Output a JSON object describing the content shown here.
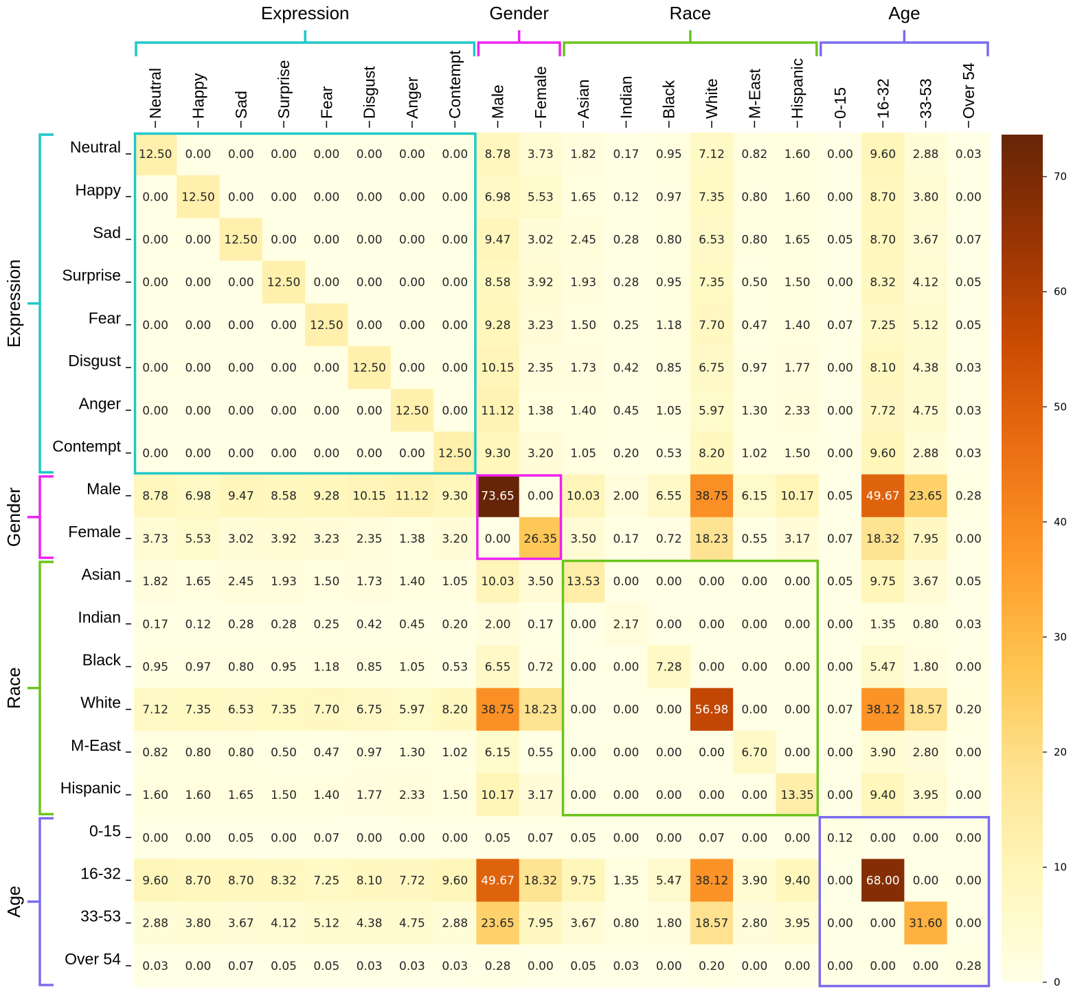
{
  "chart_data": {
    "type": "heatmap",
    "labels": [
      "Neutral",
      "Happy",
      "Sad",
      "Surprise",
      "Fear",
      "Disgust",
      "Anger",
      "Contempt",
      "Male",
      "Female",
      "Asian",
      "Indian",
      "Black",
      "White",
      "M-East",
      "Hispanic",
      "0-15",
      "16-32",
      "33-53",
      "Over 54"
    ],
    "groups": [
      {
        "name": "Expression",
        "start": 0,
        "end": 7,
        "color": "#1fc8c8"
      },
      {
        "name": "Gender",
        "start": 8,
        "end": 9,
        "color": "#ee22ee"
      },
      {
        "name": "Race",
        "start": 10,
        "end": 15,
        "color": "#6cc31d"
      },
      {
        "name": "Age",
        "start": 16,
        "end": 19,
        "color": "#7a6cf0"
      }
    ],
    "values": [
      [
        12.5,
        0.0,
        0.0,
        0.0,
        0.0,
        0.0,
        0.0,
        0.0,
        8.78,
        3.73,
        1.82,
        0.17,
        0.95,
        7.12,
        0.82,
        1.6,
        0.0,
        9.6,
        2.88,
        0.03
      ],
      [
        0.0,
        12.5,
        0.0,
        0.0,
        0.0,
        0.0,
        0.0,
        0.0,
        6.98,
        5.53,
        1.65,
        0.12,
        0.97,
        7.35,
        0.8,
        1.6,
        0.0,
        8.7,
        3.8,
        0.0
      ],
      [
        0.0,
        0.0,
        12.5,
        0.0,
        0.0,
        0.0,
        0.0,
        0.0,
        9.47,
        3.02,
        2.45,
        0.28,
        0.8,
        6.53,
        0.8,
        1.65,
        0.05,
        8.7,
        3.67,
        0.07
      ],
      [
        0.0,
        0.0,
        0.0,
        12.5,
        0.0,
        0.0,
        0.0,
        0.0,
        8.58,
        3.92,
        1.93,
        0.28,
        0.95,
        7.35,
        0.5,
        1.5,
        0.0,
        8.32,
        4.12,
        0.05
      ],
      [
        0.0,
        0.0,
        0.0,
        0.0,
        12.5,
        0.0,
        0.0,
        0.0,
        9.28,
        3.23,
        1.5,
        0.25,
        1.18,
        7.7,
        0.47,
        1.4,
        0.07,
        7.25,
        5.12,
        0.05
      ],
      [
        0.0,
        0.0,
        0.0,
        0.0,
        0.0,
        12.5,
        0.0,
        0.0,
        10.15,
        2.35,
        1.73,
        0.42,
        0.85,
        6.75,
        0.97,
        1.77,
        0.0,
        8.1,
        4.38,
        0.03
      ],
      [
        0.0,
        0.0,
        0.0,
        0.0,
        0.0,
        0.0,
        12.5,
        0.0,
        11.12,
        1.38,
        1.4,
        0.45,
        1.05,
        5.97,
        1.3,
        2.33,
        0.0,
        7.72,
        4.75,
        0.03
      ],
      [
        0.0,
        0.0,
        0.0,
        0.0,
        0.0,
        0.0,
        0.0,
        12.5,
        9.3,
        3.2,
        1.05,
        0.2,
        0.53,
        8.2,
        1.02,
        1.5,
        0.0,
        9.6,
        2.88,
        0.03
      ],
      [
        8.78,
        6.98,
        9.47,
        8.58,
        9.28,
        10.15,
        11.12,
        9.3,
        73.65,
        0.0,
        10.03,
        2.0,
        6.55,
        38.75,
        6.15,
        10.17,
        0.05,
        49.67,
        23.65,
        0.28
      ],
      [
        3.73,
        5.53,
        3.02,
        3.92,
        3.23,
        2.35,
        1.38,
        3.2,
        0.0,
        26.35,
        3.5,
        0.17,
        0.72,
        18.23,
        0.55,
        3.17,
        0.07,
        18.32,
        7.95,
        0.0
      ],
      [
        1.82,
        1.65,
        2.45,
        1.93,
        1.5,
        1.73,
        1.4,
        1.05,
        10.03,
        3.5,
        13.53,
        0.0,
        0.0,
        0.0,
        0.0,
        0.0,
        0.05,
        9.75,
        3.67,
        0.05
      ],
      [
        0.17,
        0.12,
        0.28,
        0.28,
        0.25,
        0.42,
        0.45,
        0.2,
        2.0,
        0.17,
        0.0,
        2.17,
        0.0,
        0.0,
        0.0,
        0.0,
        0.0,
        1.35,
        0.8,
        0.03
      ],
      [
        0.95,
        0.97,
        0.8,
        0.95,
        1.18,
        0.85,
        1.05,
        0.53,
        6.55,
        0.72,
        0.0,
        0.0,
        7.28,
        0.0,
        0.0,
        0.0,
        0.0,
        5.47,
        1.8,
        0.0
      ],
      [
        7.12,
        7.35,
        6.53,
        7.35,
        7.7,
        6.75,
        5.97,
        8.2,
        38.75,
        18.23,
        0.0,
        0.0,
        0.0,
        56.98,
        0.0,
        0.0,
        0.07,
        38.12,
        18.57,
        0.2
      ],
      [
        0.82,
        0.8,
        0.8,
        0.5,
        0.47,
        0.97,
        1.3,
        1.02,
        6.15,
        0.55,
        0.0,
        0.0,
        0.0,
        0.0,
        6.7,
        0.0,
        0.0,
        3.9,
        2.8,
        0.0
      ],
      [
        1.6,
        1.6,
        1.65,
        1.5,
        1.4,
        1.77,
        2.33,
        1.5,
        10.17,
        3.17,
        0.0,
        0.0,
        0.0,
        0.0,
        0.0,
        13.35,
        0.0,
        9.4,
        3.95,
        0.0
      ],
      [
        0.0,
        0.0,
        0.05,
        0.0,
        0.07,
        0.0,
        0.0,
        0.0,
        0.05,
        0.07,
        0.05,
        0.0,
        0.0,
        0.07,
        0.0,
        0.0,
        0.12,
        0.0,
        0.0,
        0.0
      ],
      [
        9.6,
        8.7,
        8.7,
        8.32,
        7.25,
        8.1,
        7.72,
        9.6,
        49.67,
        18.32,
        9.75,
        1.35,
        5.47,
        38.12,
        3.9,
        9.4,
        0.0,
        68.0,
        0.0,
        0.0
      ],
      [
        2.88,
        3.8,
        3.67,
        4.12,
        5.12,
        4.38,
        4.75,
        2.88,
        23.65,
        7.95,
        3.67,
        0.8,
        1.8,
        18.57,
        2.8,
        3.95,
        0.0,
        0.0,
        31.6,
        0.0
      ],
      [
        0.03,
        0.0,
        0.07,
        0.05,
        0.05,
        0.03,
        0.03,
        0.03,
        0.28,
        0.0,
        0.05,
        0.03,
        0.0,
        0.2,
        0.0,
        0.0,
        0.0,
        0.0,
        0.0,
        0.28
      ]
    ],
    "value_format": "2 decimals",
    "colormap": "YlOrBr",
    "colorbar": {
      "min": 0,
      "max": 73.65,
      "ticks": [
        0,
        10,
        20,
        30,
        40,
        50,
        60,
        70
      ]
    },
    "title": "",
    "xlabel": "",
    "ylabel": ""
  }
}
